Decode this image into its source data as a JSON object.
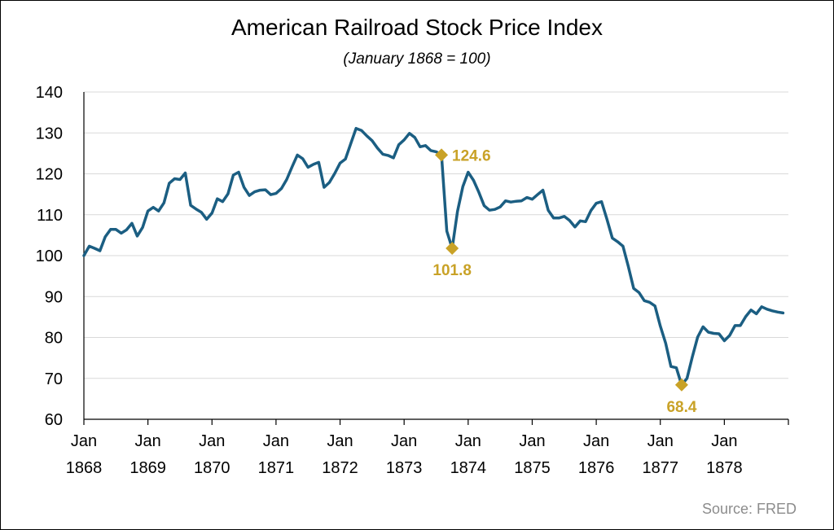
{
  "chart_data": {
    "type": "line",
    "title": "American Railroad Stock Price Index",
    "subtitle": "(January 1868 = 100)",
    "source": "Source: FRED",
    "x_start": "1868-01",
    "x_end": "1878-12",
    "ylim": [
      60,
      140
    ],
    "yticks": [
      "60",
      "70",
      "80",
      "90",
      "100",
      "110",
      "120",
      "130",
      "140"
    ],
    "xticks": [
      {
        "month": "Jan",
        "year": "1868"
      },
      {
        "month": "Jan",
        "year": "1869"
      },
      {
        "month": "Jan",
        "year": "1870"
      },
      {
        "month": "Jan",
        "year": "1871"
      },
      {
        "month": "Jan",
        "year": "1872"
      },
      {
        "month": "Jan",
        "year": "1873"
      },
      {
        "month": "Jan",
        "year": "1874"
      },
      {
        "month": "Jan",
        "year": "1875"
      },
      {
        "month": "Jan",
        "year": "1876"
      },
      {
        "month": "Jan",
        "year": "1877"
      },
      {
        "month": "Jan",
        "year": "1878"
      }
    ],
    "grid": true,
    "line_color": "#1b5e82",
    "marker_color": "#c9a227",
    "series": [
      {
        "x": [
          "1868-01",
          "1868-02",
          "1868-03",
          "1868-04",
          "1868-05",
          "1868-06",
          "1868-07",
          "1868-08",
          "1868-09",
          "1868-10",
          "1868-11",
          "1868-12",
          "1869-01",
          "1869-02",
          "1869-03",
          "1869-04",
          "1869-05",
          "1869-06",
          "1869-07",
          "1869-08",
          "1869-09",
          "1869-10",
          "1869-11",
          "1869-12",
          "1870-01",
          "1870-02",
          "1870-03",
          "1870-04",
          "1870-05",
          "1870-06",
          "1870-07",
          "1870-08",
          "1870-09",
          "1870-10",
          "1870-11",
          "1870-12",
          "1871-01",
          "1871-02",
          "1871-03",
          "1871-04",
          "1871-05",
          "1871-06",
          "1871-07",
          "1871-08",
          "1871-09",
          "1871-10",
          "1871-11",
          "1871-12",
          "1872-01",
          "1872-02",
          "1872-03",
          "1872-04",
          "1872-05",
          "1872-06",
          "1872-07",
          "1872-08",
          "1872-09",
          "1872-10",
          "1872-11",
          "1872-12",
          "1873-01",
          "1873-02",
          "1873-03",
          "1873-04",
          "1873-05",
          "1873-06",
          "1873-07",
          "1873-08",
          "1873-09",
          "1873-10",
          "1873-11",
          "1873-12",
          "1874-01",
          "1874-02",
          "1874-03",
          "1874-04",
          "1874-05",
          "1874-06",
          "1874-07",
          "1874-08",
          "1874-09",
          "1874-10",
          "1874-11",
          "1874-12",
          "1875-01",
          "1875-02",
          "1875-03",
          "1875-04",
          "1875-05",
          "1875-06",
          "1875-07",
          "1875-08",
          "1875-09",
          "1875-10",
          "1875-11",
          "1875-12",
          "1876-01",
          "1876-02",
          "1876-03",
          "1876-04",
          "1876-05",
          "1876-06",
          "1876-07",
          "1876-08",
          "1876-09",
          "1876-10",
          "1876-11",
          "1876-12",
          "1877-01",
          "1877-02",
          "1877-03",
          "1877-04",
          "1877-05",
          "1877-06",
          "1877-07",
          "1877-08",
          "1877-09",
          "1877-10",
          "1877-11",
          "1877-12",
          "1878-01",
          "1878-02",
          "1878-03",
          "1878-04",
          "1878-05",
          "1878-06",
          "1878-07",
          "1878-08",
          "1878-09",
          "1878-10",
          "1878-11",
          "1878-12"
        ],
        "y": [
          100,
          102.3,
          101.8,
          101.2,
          104.6,
          106.4,
          106.4,
          105.5,
          106.3,
          107.9,
          104.8,
          106.9,
          110.9,
          111.8,
          110.9,
          112.9,
          117.7,
          118.8,
          118.6,
          120.2,
          112.3,
          111.4,
          110.6,
          108.9,
          110.4,
          113.9,
          113.2,
          115.1,
          119.7,
          120.4,
          116.7,
          114.7,
          115.6,
          116.0,
          116.1,
          114.9,
          115.2,
          116.4,
          118.6,
          121.7,
          124.6,
          123.7,
          121.6,
          122.3,
          122.8,
          116.7,
          117.9,
          120.1,
          122.6,
          123.6,
          127.4,
          131.1,
          130.6,
          129.3,
          128.1,
          126.3,
          124.8,
          124.5,
          123.9,
          127.1,
          128.3,
          129.9,
          128.9,
          126.6,
          126.9,
          125.7,
          125.4,
          124.6,
          106.0,
          101.8,
          110.8,
          116.9,
          120.4,
          118.4,
          115.5,
          112.2,
          111.1,
          111.3,
          111.9,
          113.4,
          113.1,
          113.3,
          113.4,
          114.2,
          113.8,
          114.9,
          116.0,
          111.1,
          109.2,
          109.2,
          109.6,
          108.6,
          107.0,
          108.5,
          108.3,
          111.0,
          112.8,
          113.2,
          108.9,
          104.3,
          103.4,
          102.3,
          97.4,
          92.0,
          91.0,
          89.0,
          88.6,
          87.7,
          82.8,
          78.6,
          72.9,
          72.6,
          68.4,
          70.0,
          75.2,
          80.1,
          82.6,
          81.3,
          81.0,
          80.9,
          79.2,
          80.5,
          82.9,
          82.9,
          85.1,
          86.7,
          85.8,
          87.5,
          86.9,
          86.5,
          86.2,
          86.0
        ]
      }
    ],
    "annotations": [
      {
        "x": "1873-08",
        "y": 124.6,
        "label": "124.6",
        "position": "right"
      },
      {
        "x": "1873-10",
        "y": 101.8,
        "label": "101.8",
        "position": "below"
      },
      {
        "x": "1877-05",
        "y": 68.4,
        "label": "68.4",
        "position": "below"
      }
    ]
  }
}
